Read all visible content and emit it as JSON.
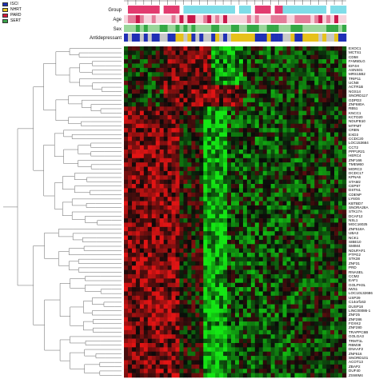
{
  "legend": {
    "items": [
      {
        "label": "ISCI",
        "color": "#1f2fb5"
      },
      {
        "label": "NHRT",
        "color": "#e7c11a"
      },
      {
        "label": "PARD",
        "color": "#d81b3c"
      },
      {
        "label": "SERT",
        "color": "#3aa44a"
      }
    ]
  },
  "tracks": [
    {
      "label": "Group"
    },
    {
      "label": "Age"
    },
    {
      "label": "Sex"
    },
    {
      "label": "Antidepressant"
    }
  ],
  "colors": {
    "up": "#e01010",
    "down": "#12e012",
    "neutral": "#0a0a0a",
    "group_cyan": "#7fdde8",
    "group_pink": "#e23b6f",
    "age_low": "#f7d3dc",
    "age_high": "#c8184a",
    "sex_male": "#9ad69a",
    "sex_female": "#35a845",
    "anti_none": "#c8c8c8",
    "anti_blue": "#1f2fb5",
    "anti_yellow": "#e7c11a"
  },
  "genes": [
    "EXOC1",
    "MCTS1",
    "CD58",
    "FAM50LG",
    "EIF4H",
    "ASNS01",
    "MRS15B2",
    "TRIP11",
    "UCN8",
    "ACTR1B",
    "NGS14",
    "SNORD117",
    "GDPD3",
    "ZNF680A",
    "RB51",
    "KNCC1",
    "KCTD20",
    "NDUFB10",
    "MTFMT",
    "CRBN",
    "EXD3",
    "CCDC20",
    "LOC153684",
    "CCT2",
    "PPP1R21",
    "HERC4",
    "ZNF166",
    "TMEM60",
    "MORC3",
    "DCDC17",
    "KPNA6",
    "STAM2",
    "CEP97",
    "DSTN1",
    "CDENP",
    "LY6G6",
    "KBTBD7",
    "SNORA28A",
    "STK17A",
    "DCAF12",
    "NSL1",
    "MGC16025",
    "ZNF518A",
    "UBA3",
    "NCK1",
    "SIBE10",
    "SMIM4",
    "NDUFAF1",
    "PTPG2",
    "STK38",
    "ZNF31",
    "PRD",
    "RNASEL",
    "CCM2",
    "EAF1",
    "GOLPH3L",
    "IWS1",
    "LOC10132686",
    "USP29",
    "C14orf163",
    "DUSP18",
    "LINC00086-1",
    "ZNF25",
    "ZNF286",
    "FOXK2",
    "ZNF280",
    "TRAPPC6B",
    "GOLGA3",
    "TRMT1L",
    "RBM38",
    "DNAAF2",
    "ZNF616",
    "SNORD101",
    "ACOT13",
    "ZBAP2",
    "DUF40",
    "ZSWIM4"
  ]
}
